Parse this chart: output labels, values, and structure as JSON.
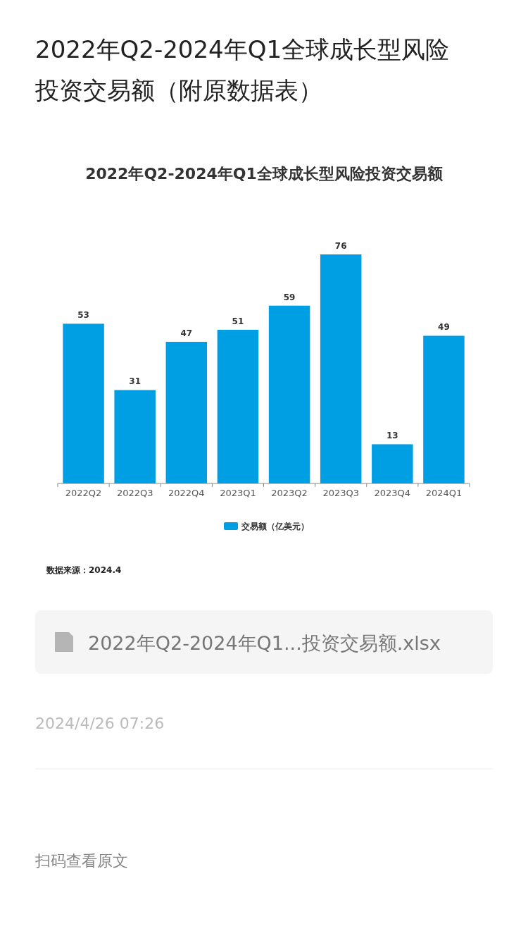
{
  "chart_data": {
    "type": "bar",
    "title": "2022年Q2-2024年Q1全球成长型风险投资交易额（附原数据表）",
    "subtitle": "2022年Q2-2024年Q1全球成长型风险投资交易额",
    "categories": [
      "2022Q2",
      "2022Q3",
      "2022Q4",
      "2023Q1",
      "2023Q2",
      "2023Q3",
      "2023Q4",
      "2024Q1"
    ],
    "series": [
      {
        "name": "交易额（亿美元）",
        "color": "#009fe3",
        "values": [
          53,
          31,
          47,
          51,
          59,
          76,
          13,
          49
        ]
      }
    ],
    "data_labels": true,
    "legend": "bottom",
    "annotations": [
      "数据来源：2024.4",
      "2022年Q2-2024年Q1...投资交易额.xlsx",
      "2024/4/26 07:26",
      "扫码查看原文"
    ]
  }
}
